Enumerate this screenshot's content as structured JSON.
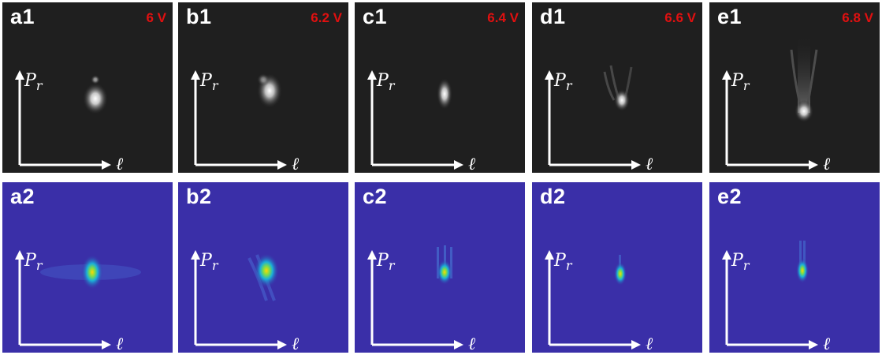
{
  "figure": {
    "columns": [
      {
        "id": "a",
        "voltage": "6 V"
      },
      {
        "id": "b",
        "voltage": "6.2 V"
      },
      {
        "id": "c",
        "voltage": "6.4 V"
      },
      {
        "id": "d",
        "voltage": "6.6 V"
      },
      {
        "id": "e",
        "voltage": "6.8 V"
      }
    ],
    "rows": [
      {
        "style": "grayscale",
        "panels": [
          {
            "label": "a1",
            "voltage": "6 V"
          },
          {
            "label": "b1",
            "voltage": "6.2 V"
          },
          {
            "label": "c1",
            "voltage": "6.4 V"
          },
          {
            "label": "d1",
            "voltage": "6.6 V"
          },
          {
            "label": "e1",
            "voltage": "6.8 V"
          }
        ]
      },
      {
        "style": "colormap",
        "panels": [
          {
            "label": "a2"
          },
          {
            "label": "b2"
          },
          {
            "label": "c2"
          },
          {
            "label": "d2"
          },
          {
            "label": "e2"
          }
        ]
      }
    ],
    "axis_y_label": "P",
    "axis_y_subscript": "r",
    "axis_x_label": "ℓ",
    "colors": {
      "grayscale_background": "#1f1f1f",
      "colormap_background": "#3a2fa8",
      "voltage_text": "#e01010",
      "label_text": "#ffffff"
    }
  }
}
